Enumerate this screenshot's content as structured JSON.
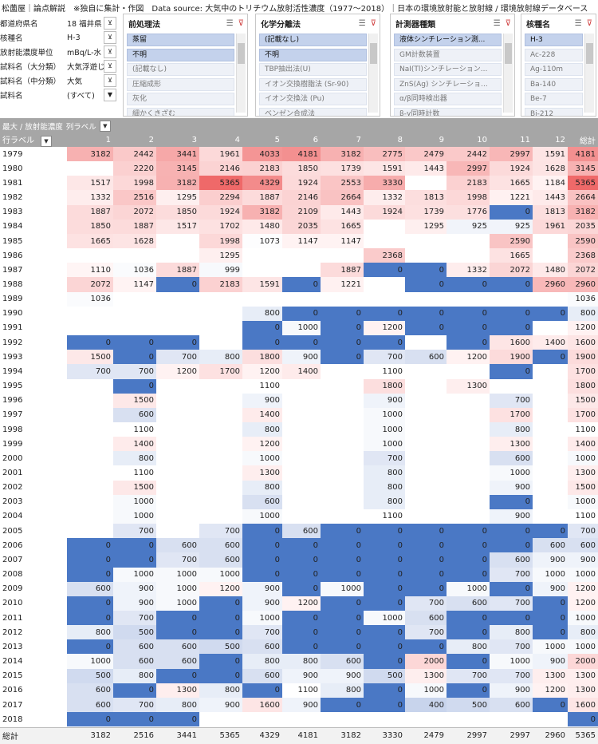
{
  "title": "松薗屋｜論点解説　※独自に集計・作図　Data source: 大気中のトリチウム放射活性濃度（1977～2018）｜日本の環境放射能と放射線 / 環境放射線データベース",
  "filters": [
    {
      "label": "都道府県名",
      "value": "18 福井県"
    },
    {
      "label": "核種名",
      "value": "H-3"
    },
    {
      "label": "放射能濃度単位",
      "value": "mBq/L-水"
    },
    {
      "label": "試料名（大分類）",
      "value": "大気浮遊じん・ガス"
    },
    {
      "label": "試料名（中分類）",
      "value": "大気"
    },
    {
      "label": "試料名",
      "value": "(すべて)"
    }
  ],
  "slicers": [
    {
      "title": "前処理法",
      "items": [
        "蒸留",
        "不明",
        "(記載なし)",
        "圧縮成形",
        "灰化",
        "細かくきざむ"
      ],
      "sel": [
        0,
        1
      ]
    },
    {
      "title": "化学分離法",
      "items": [
        "(記載なし)",
        "不明",
        "TBP抽出法(U)",
        "イオン交換樹脂法 (Sr-90)",
        "イオン交換法 (Pu)",
        "ベンゼン合成法"
      ],
      "sel": [
        0,
        1
      ]
    },
    {
      "title": "計測器種類",
      "items": [
        "液体シンチレーション測...",
        "GM計数装置",
        "NaI(Tl)シンチレーション...",
        "ZnS(Ag) シンチレーショ...",
        "α/β同時検出器",
        "β-γ同時計数"
      ],
      "sel": [
        0
      ]
    },
    {
      "title": "核種名",
      "items": [
        "H-3",
        "Ac-228",
        "Ag-110m",
        "Ba-140",
        "Be-7",
        "Bi-212"
      ],
      "sel": [
        0
      ]
    }
  ],
  "pivot": {
    "measure": "最大 / 放射能濃度",
    "col_label": "列ラベル",
    "row_label": "行ラベル",
    "grand_label": "総計",
    "columns": [
      "1",
      "2",
      "3",
      "4",
      "5",
      "6",
      "7",
      "8",
      "9",
      "10",
      "11",
      "12",
      "総計"
    ],
    "rows": [
      {
        "y": "1979",
        "v": [
          3182,
          2442,
          3441,
          1961,
          4033,
          4181,
          3182,
          2775,
          2479,
          2442,
          2997,
          1591,
          4181
        ]
      },
      {
        "y": "1980",
        "v": [
          null,
          2220,
          3145,
          2146,
          2183,
          1850,
          1739,
          1591,
          1443,
          2997,
          1924,
          1628,
          3145
        ]
      },
      {
        "y": "1981",
        "v": [
          1517,
          1998,
          3182,
          5365,
          4329,
          1924,
          2553,
          3330,
          null,
          2183,
          1665,
          1184,
          5365
        ]
      },
      {
        "y": "1982",
        "v": [
          1332,
          2516,
          1295,
          2294,
          1887,
          2146,
          2664,
          1332,
          1813,
          1998,
          1221,
          1443,
          2664
        ]
      },
      {
        "y": "1983",
        "v": [
          1887,
          2072,
          1850,
          1924,
          3182,
          2109,
          1443,
          1924,
          1739,
          1776,
          0,
          1813,
          3182
        ]
      },
      {
        "y": "1984",
        "v": [
          1850,
          1887,
          1517,
          1702,
          1480,
          2035,
          1665,
          null,
          1295,
          925,
          925,
          1961,
          2035
        ]
      },
      {
        "y": "1985",
        "v": [
          1665,
          1628,
          null,
          1998,
          1073,
          1147,
          1147,
          null,
          null,
          null,
          2590,
          null,
          2590
        ]
      },
      {
        "y": "1986",
        "v": [
          null,
          null,
          null,
          1295,
          null,
          null,
          null,
          2368,
          null,
          null,
          1665,
          null,
          2368
        ]
      },
      {
        "y": "1987",
        "v": [
          1110,
          1036,
          1887,
          999,
          null,
          null,
          1887,
          0,
          0,
          1332,
          2072,
          1480,
          2072
        ]
      },
      {
        "y": "1988",
        "v": [
          2072,
          1147,
          0,
          2183,
          1591,
          0,
          1221,
          null,
          0,
          0,
          0,
          2960,
          2960
        ]
      },
      {
        "y": "1989",
        "v": [
          1036,
          null,
          null,
          null,
          null,
          null,
          null,
          null,
          null,
          null,
          null,
          null,
          1036
        ]
      },
      {
        "y": "1990",
        "v": [
          null,
          null,
          null,
          null,
          800,
          0,
          0,
          0,
          0,
          0,
          0,
          0,
          800
        ]
      },
      {
        "y": "1991",
        "v": [
          null,
          null,
          null,
          null,
          0,
          1000,
          0,
          1200,
          0,
          0,
          0,
          null,
          1200
        ]
      },
      {
        "y": "1992",
        "v": [
          0,
          0,
          0,
          null,
          0,
          0,
          0,
          0,
          null,
          0,
          1600,
          1400,
          1600
        ]
      },
      {
        "y": "1993",
        "v": [
          1500,
          0,
          700,
          800,
          1800,
          900,
          0,
          700,
          600,
          1200,
          1900,
          0,
          1900
        ]
      },
      {
        "y": "1994",
        "v": [
          700,
          700,
          1200,
          1700,
          1200,
          1400,
          null,
          1100,
          null,
          null,
          0,
          null,
          1700
        ]
      },
      {
        "y": "1995",
        "v": [
          null,
          0,
          null,
          null,
          1100,
          null,
          null,
          1800,
          null,
          1300,
          null,
          null,
          1800
        ]
      },
      {
        "y": "1996",
        "v": [
          null,
          1500,
          null,
          null,
          900,
          null,
          null,
          900,
          null,
          null,
          700,
          null,
          1500
        ]
      },
      {
        "y": "1997",
        "v": [
          null,
          600,
          null,
          null,
          1400,
          null,
          null,
          1000,
          null,
          null,
          1700,
          null,
          1700
        ]
      },
      {
        "y": "1998",
        "v": [
          null,
          1100,
          null,
          null,
          800,
          null,
          null,
          1000,
          null,
          null,
          800,
          null,
          1100
        ]
      },
      {
        "y": "1999",
        "v": [
          null,
          1400,
          null,
          null,
          1200,
          null,
          null,
          1000,
          null,
          null,
          1300,
          null,
          1400
        ]
      },
      {
        "y": "2000",
        "v": [
          null,
          800,
          null,
          null,
          1000,
          null,
          null,
          700,
          null,
          null,
          600,
          null,
          1000
        ]
      },
      {
        "y": "2001",
        "v": [
          null,
          1100,
          null,
          null,
          1300,
          null,
          null,
          800,
          null,
          null,
          1000,
          null,
          1300
        ]
      },
      {
        "y": "2002",
        "v": [
          null,
          1500,
          null,
          null,
          800,
          null,
          null,
          800,
          null,
          null,
          900,
          null,
          1500
        ]
      },
      {
        "y": "2003",
        "v": [
          null,
          1000,
          null,
          null,
          600,
          null,
          null,
          800,
          null,
          null,
          0,
          null,
          1000
        ]
      },
      {
        "y": "2004",
        "v": [
          null,
          1000,
          null,
          null,
          1000,
          null,
          null,
          1100,
          null,
          null,
          900,
          null,
          1100
        ]
      },
      {
        "y": "2005",
        "v": [
          null,
          700,
          null,
          700,
          0,
          600,
          0,
          0,
          0,
          0,
          0,
          0,
          700
        ]
      },
      {
        "y": "2006",
        "v": [
          0,
          0,
          600,
          600,
          0,
          0,
          0,
          0,
          0,
          0,
          0,
          600,
          600
        ]
      },
      {
        "y": "2007",
        "v": [
          0,
          0,
          700,
          600,
          0,
          0,
          0,
          0,
          0,
          0,
          600,
          900,
          900
        ]
      },
      {
        "y": "2008",
        "v": [
          0,
          1000,
          1000,
          1000,
          0,
          0,
          0,
          0,
          0,
          0,
          700,
          1000,
          1000
        ]
      },
      {
        "y": "2009",
        "v": [
          600,
          900,
          1000,
          1200,
          900,
          0,
          1000,
          0,
          0,
          1000,
          0,
          900,
          1200
        ]
      },
      {
        "y": "2010",
        "v": [
          0,
          900,
          1000,
          0,
          900,
          1200,
          0,
          0,
          700,
          600,
          700,
          0,
          1200
        ]
      },
      {
        "y": "2011",
        "v": [
          0,
          700,
          0,
          0,
          1000,
          0,
          0,
          1000,
          600,
          0,
          0,
          0,
          1000
        ]
      },
      {
        "y": "2012",
        "v": [
          800,
          500,
          0,
          0,
          700,
          0,
          0,
          0,
          700,
          0,
          800,
          0,
          800
        ]
      },
      {
        "y": "2013",
        "v": [
          0,
          600,
          600,
          500,
          600,
          0,
          0,
          0,
          0,
          800,
          700,
          1000,
          1000
        ]
      },
      {
        "y": "2014",
        "v": [
          1000,
          600,
          600,
          0,
          800,
          800,
          600,
          0,
          2000,
          0,
          1000,
          900,
          2000
        ]
      },
      {
        "y": "2015",
        "v": [
          500,
          800,
          0,
          0,
          600,
          900,
          900,
          500,
          1300,
          700,
          700,
          1300,
          1300
        ]
      },
      {
        "y": "2016",
        "v": [
          600,
          0,
          1300,
          800,
          0,
          1100,
          800,
          0,
          1000,
          0,
          900,
          1200,
          1300
        ]
      },
      {
        "y": "2017",
        "v": [
          600,
          700,
          800,
          900,
          1600,
          900,
          0,
          0,
          400,
          500,
          600,
          0,
          1600
        ]
      },
      {
        "y": "2018",
        "v": [
          0,
          0,
          0,
          null,
          null,
          null,
          null,
          null,
          null,
          null,
          null,
          null,
          0
        ]
      }
    ],
    "grand": [
      3182,
      2516,
      3441,
      5365,
      4329,
      4181,
      3182,
      3330,
      2479,
      2997,
      2997,
      2960,
      5365
    ]
  },
  "colors": {
    "zero": "#4a78c5",
    "hot": "#ef6b6b",
    "header": "#a6a6a6"
  }
}
